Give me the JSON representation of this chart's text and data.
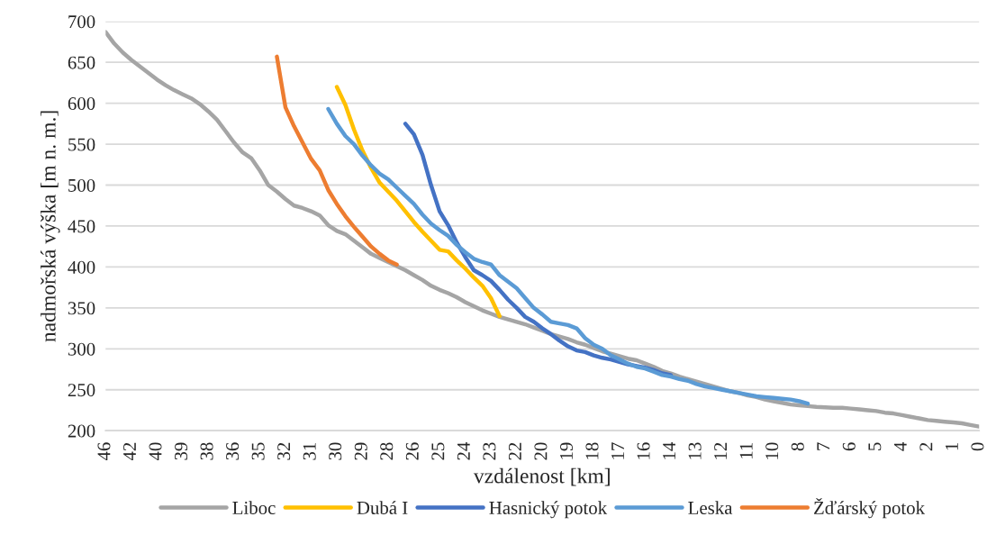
{
  "chart_data": {
    "type": "line",
    "xlabel": "vzdálenost [km]",
    "ylabel": "nadmořská výška [m n. m.]",
    "categories": [
      "46",
      null,
      null,
      "42",
      null,
      null,
      "40",
      null,
      null,
      "39",
      null,
      null,
      "38",
      null,
      null,
      "36",
      null,
      null,
      "35",
      null,
      null,
      "32",
      null,
      null,
      "31",
      null,
      null,
      "30",
      null,
      null,
      "29",
      null,
      null,
      "28",
      null,
      null,
      "26",
      null,
      null,
      "25",
      null,
      null,
      "24",
      null,
      null,
      "23",
      null,
      null,
      "22",
      null,
      null,
      "20",
      null,
      null,
      "19",
      null,
      null,
      "18",
      null,
      null,
      "17",
      null,
      null,
      "16",
      null,
      null,
      "14",
      null,
      null,
      "13",
      null,
      null,
      "12",
      null,
      null,
      "11",
      null,
      null,
      "10",
      null,
      null,
      "8",
      null,
      null,
      "7",
      null,
      null,
      "6",
      null,
      null,
      "5",
      null,
      null,
      "4",
      null,
      null,
      "2",
      null,
      null,
      "1",
      null,
      null,
      "0"
    ],
    "ylim": [
      200,
      700
    ],
    "yticks": [
      200,
      250,
      300,
      350,
      400,
      450,
      500,
      550,
      600,
      650,
      700
    ],
    "grid": "y",
    "legend": "bottom",
    "line_style": "solid",
    "series": [
      {
        "name": "Liboc",
        "color": "#a5a5a5",
        "values": [
          687,
          673,
          662,
          653,
          645,
          637,
          629,
          622,
          616,
          611,
          606,
          599,
          590,
          580,
          566,
          552,
          540,
          533,
          518,
          500,
          492,
          483,
          475,
          472,
          468,
          463,
          451,
          444,
          440,
          432,
          424,
          416,
          411,
          406,
          401,
          396,
          390,
          384,
          377,
          372,
          368,
          363,
          357,
          352,
          347,
          343,
          339,
          336,
          333,
          330,
          326,
          322,
          318,
          315,
          312,
          308,
          305,
          301,
          297,
          294,
          291,
          288,
          286,
          282,
          278,
          273,
          270,
          266,
          263,
          260,
          257,
          254,
          251,
          248,
          246,
          243,
          241,
          238,
          236,
          234,
          232,
          231,
          230,
          229,
          228.5,
          228,
          228,
          227,
          226,
          225,
          224,
          222,
          221,
          219,
          217,
          215,
          213,
          212,
          211,
          210,
          209,
          207,
          205
        ]
      },
      {
        "name": "Dubá I",
        "color": "#ffc000",
        "values": [
          null,
          null,
          null,
          null,
          null,
          null,
          null,
          null,
          null,
          null,
          null,
          null,
          null,
          null,
          null,
          null,
          null,
          null,
          null,
          null,
          null,
          null,
          null,
          null,
          null,
          null,
          null,
          620,
          598,
          568,
          542,
          521,
          503,
          492,
          481,
          468,
          455,
          443,
          432,
          421,
          419,
          408,
          398,
          387,
          377,
          362,
          340,
          null,
          null,
          null,
          null,
          null,
          null,
          null,
          null,
          null,
          null,
          null,
          null,
          null,
          null,
          null,
          null,
          null,
          null,
          null,
          null,
          null,
          null,
          null,
          null,
          null,
          null,
          null,
          null,
          null,
          null,
          null,
          null,
          null,
          null,
          null,
          null,
          null,
          null,
          null,
          null,
          null,
          null,
          null,
          null,
          null,
          null,
          null,
          null,
          null,
          null,
          null,
          null,
          null,
          null,
          null,
          null
        ]
      },
      {
        "name": "Hasnický potok",
        "color": "#4472c4",
        "values": [
          null,
          null,
          null,
          null,
          null,
          null,
          null,
          null,
          null,
          null,
          null,
          null,
          null,
          null,
          null,
          null,
          null,
          null,
          null,
          null,
          null,
          null,
          null,
          null,
          null,
          null,
          null,
          null,
          null,
          null,
          null,
          null,
          null,
          null,
          null,
          575,
          562,
          537,
          500,
          468,
          451,
          430,
          412,
          396,
          390,
          383,
          372,
          360,
          350,
          339,
          333,
          325,
          318,
          310,
          303,
          298,
          296,
          292,
          289,
          287,
          284,
          281,
          279,
          277,
          274,
          270,
          268,
          null,
          null,
          null,
          null,
          null,
          null,
          null,
          null,
          null,
          null,
          null,
          null,
          null,
          null,
          null,
          null,
          null,
          null,
          null,
          null,
          null,
          null,
          null,
          null,
          null,
          null,
          null,
          null,
          null,
          null,
          null,
          null,
          null,
          null,
          null,
          null
        ]
      },
      {
        "name": "Leska",
        "color": "#5b9bd5",
        "values": [
          null,
          null,
          null,
          null,
          null,
          null,
          null,
          null,
          null,
          null,
          null,
          null,
          null,
          null,
          null,
          null,
          null,
          null,
          null,
          null,
          null,
          null,
          null,
          null,
          null,
          null,
          593,
          575,
          560,
          550,
          536,
          524,
          514,
          507,
          497,
          487,
          477,
          464,
          453,
          445,
          438,
          427,
          418,
          410,
          406,
          403,
          390,
          382,
          374,
          362,
          350,
          342,
          333,
          331,
          329,
          325,
          313,
          305,
          300,
          292,
          287,
          282,
          278,
          276,
          272,
          268,
          266,
          263,
          261,
          257,
          254,
          252,
          250,
          248,
          246,
          244,
          242,
          241,
          240,
          239,
          238,
          236,
          233,
          null,
          null,
          null,
          null,
          null,
          null,
          null,
          null,
          null,
          null,
          null,
          null,
          null,
          null,
          null,
          null,
          null,
          null,
          null,
          null
        ]
      },
      {
        "name": "Žďárský potok",
        "color": "#ed7d31",
        "values": [
          null,
          null,
          null,
          null,
          null,
          null,
          null,
          null,
          null,
          null,
          null,
          null,
          null,
          null,
          null,
          null,
          null,
          null,
          null,
          null,
          657,
          595,
          572,
          552,
          532,
          518,
          494,
          477,
          462,
          449,
          437,
          425,
          416,
          408,
          403,
          null,
          null,
          null,
          null,
          null,
          null,
          null,
          null,
          null,
          null,
          null,
          null,
          null,
          null,
          null,
          null,
          null,
          null,
          null,
          null,
          null,
          null,
          null,
          null,
          null,
          null,
          null,
          null,
          null,
          null,
          null,
          null,
          null,
          null,
          null,
          null,
          null,
          null,
          null,
          null,
          null,
          null,
          null,
          null,
          null,
          null,
          null,
          null,
          null,
          null,
          null,
          null,
          null,
          null,
          null,
          null,
          null,
          null,
          null,
          null,
          null,
          null,
          null,
          null,
          null,
          null,
          null,
          null
        ]
      }
    ]
  }
}
